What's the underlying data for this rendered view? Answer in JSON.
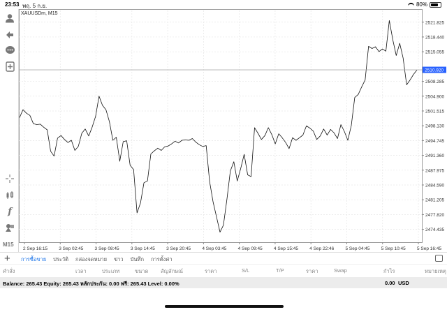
{
  "status_bar": {
    "time": "23:53",
    "date": "พฤ. 5 ก.ย.",
    "battery": "80%"
  },
  "toolbar": {
    "icons": [
      "account-icon",
      "trade-icon",
      "chat-icon",
      "new-order-icon",
      "crosshair-icon",
      "candles-icon",
      "indicators-icon",
      "objects-icon"
    ],
    "timeframe": "M15"
  },
  "chart": {
    "symbol_label": "XAUUSDm, M15",
    "current_price": "2510.920",
    "colors": {
      "line": "#111111",
      "grid": "#e6e6e6",
      "price_marker": "#2962ff"
    }
  },
  "chart_data": {
    "type": "line",
    "title": "",
    "xlabel": "",
    "ylabel": "",
    "ylim": [
      2471.5,
      2524.5
    ],
    "y_ticks": [
      "2521.825",
      "2518.440",
      "2515.055",
      "2508.285",
      "2504.900",
      "2501.515",
      "2498.130",
      "2494.745",
      "2491.360",
      "2487.975",
      "2484.590",
      "2481.205",
      "2477.820",
      "2474.435"
    ],
    "x_ticks": [
      "2 Sep 16:15",
      "3 Sep 02:45",
      "3 Sep 08:45",
      "3 Sep 14:45",
      "3 Sep 20:45",
      "4 Sep 03:45",
      "4 Sep 09:45",
      "4 Sep 15:45",
      "4 Sep 22:46",
      "5 Sep 04:45",
      "5 Sep 10:45",
      "5 Sep 16:45"
    ],
    "grid": true,
    "series": [
      {
        "values": [
          2500.0,
          2501.8,
          2501.0,
          2500.5,
          2498.6,
          2498.4,
          2498.5,
          2497.8,
          2497.2,
          2492.3,
          2491.2,
          2495.3,
          2495.9,
          2495.0,
          2494.3,
          2494.8,
          2492.5,
          2493.4,
          2496.4,
          2497.4,
          2495.8,
          2497.8,
          2500.3,
          2504.9,
          2502.8,
          2501.8,
          2499.1,
          2494.8,
          2495.5,
          2490.0,
          2494.5,
          2494.7,
          2489.1,
          2488.1,
          2478.2,
          2480.5,
          2485.1,
          2485.5,
          2491.7,
          2492.4,
          2493.0,
          2492.5,
          2493.3,
          2493.5,
          2494.0,
          2494.6,
          2494.2,
          2494.8,
          2494.9,
          2494.8,
          2495.2,
          2494.4,
          2493.8,
          2493.4,
          2493.6,
          2485.4,
          2480.7,
          2477.3,
          2473.8,
          2475.4,
          2481.3,
          2487.8,
          2489.9,
          2485.5,
          2488.4,
          2491.6,
          2486.9,
          2486.5,
          2497.7,
          2496.4,
          2495.0,
          2495.9,
          2497.7,
          2496.1,
          2494.0,
          2496.3,
          2495.4,
          2494.3,
          2492.9,
          2495.4,
          2494.8,
          2495.4,
          2496.0,
          2498.1,
          2497.6,
          2496.9,
          2495.0,
          2495.8,
          2497.4,
          2496.0,
          2497.3,
          2496.5,
          2495.2,
          2498.4,
          2496.8,
          2494.8,
          2498.2,
          2504.6,
          2505.3,
          2507.0,
          2508.6,
          2516.3,
          2515.8,
          2516.2,
          2515.1,
          2515.7,
          2515.2,
          2522.2,
          2517.8,
          2514.2,
          2517.0,
          2513.6,
          2507.5,
          2508.6,
          2509.9,
          2510.9
        ]
      }
    ]
  },
  "tabs": {
    "items": [
      "การซื้อขาย",
      "ประวัติ",
      "กล่องจดหมาย",
      "ข่าว",
      "บันทึก",
      "การตั้งค่า"
    ],
    "active": 0
  },
  "columns": [
    "คำสั่ง",
    "เวลา",
    "ประเภท",
    "ขนาด",
    "สัญลักษณ์",
    "ราคา",
    "S/L",
    "T/P",
    "ราคา",
    "Swap",
    "กำไร",
    "หมายเหตุ"
  ],
  "balance": {
    "text": "Balance: 265.43 Equity: 265.43 หลักประกัน: 0.00 ฟรี: 265.43 Level: 0.00%",
    "profit": "0.00",
    "currency": "USD"
  }
}
